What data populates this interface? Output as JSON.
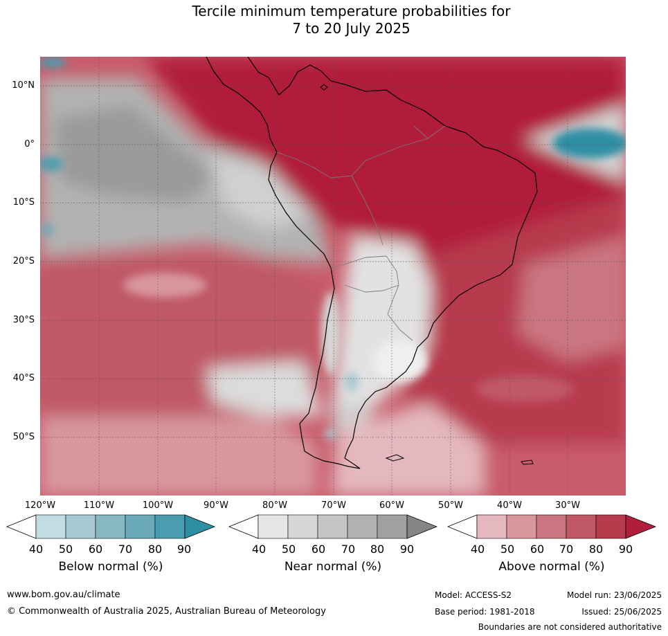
{
  "title_line1": "Tercile minimum temperature probabilities for",
  "title_line2": "7 to 20 July 2025",
  "lat_labels": [
    "10°N",
    "0°",
    "10°S",
    "20°S",
    "30°S",
    "40°S",
    "50°S"
  ],
  "lon_labels": [
    "120°W",
    "110°W",
    "100°W",
    "90°W",
    "80°W",
    "70°W",
    "60°W",
    "50°W",
    "40°W",
    "30°W"
  ],
  "legends": [
    {
      "title": "Below normal (%)",
      "ticks": [
        "40",
        "50",
        "60",
        "70",
        "80",
        "90"
      ],
      "colors": [
        "#c3dce2",
        "#a6c8d0",
        "#88b8c2",
        "#6aa9b7",
        "#4a9cae",
        "#2e8fa4"
      ]
    },
    {
      "title": "Near normal (%)",
      "ticks": [
        "40",
        "50",
        "60",
        "70",
        "80",
        "90"
      ],
      "colors": [
        "#e6e6e6",
        "#d6d6d6",
        "#c4c4c4",
        "#b2b2b2",
        "#a0a0a0",
        "#858585"
      ]
    },
    {
      "title": "Above normal (%)",
      "ticks": [
        "40",
        "50",
        "60",
        "70",
        "80",
        "90"
      ],
      "colors": [
        "#e4b8be",
        "#d8979f",
        "#ca7681",
        "#c05866",
        "#b83a4d",
        "#b11e3b"
      ]
    }
  ],
  "footer": {
    "website": "www.bom.gov.au/climate",
    "copyright": "© Commonwealth of Australia 2025, Australian Bureau of Meteorology",
    "model": "Model: ACCESS-S2",
    "base_period": "Base period: 1981-2018",
    "model_run": "Model run: 23/06/2025",
    "issued": "Issued: 25/06/2025",
    "disclaimer": "Boundaries are not considered authoritative"
  }
}
